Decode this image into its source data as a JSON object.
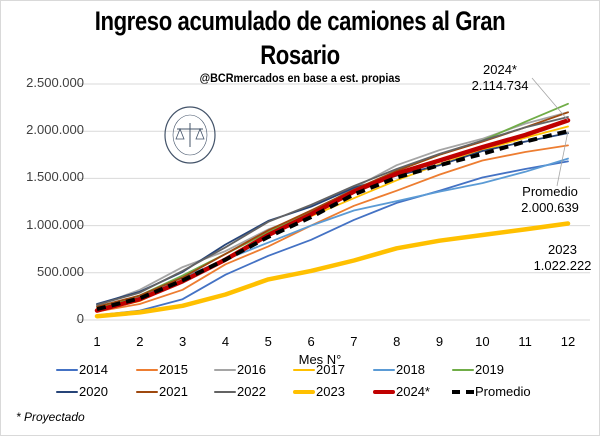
{
  "chart_data": {
    "type": "line",
    "title": "Ingreso acumulado de camiones al Gran Rosario",
    "title_lines": [
      "Ingreso acumulado de camiones al Gran",
      "Rosario"
    ],
    "subtitle": "@BCRmercados  en base a est. propias",
    "xlabel": "Mes N°",
    "ylabel": "",
    "x": [
      1,
      2,
      3,
      4,
      5,
      6,
      7,
      8,
      9,
      10,
      11,
      12
    ],
    "ylim": [
      0,
      2500000
    ],
    "yticks": [
      0,
      500000,
      1000000,
      1500000,
      2000000,
      2500000
    ],
    "ytick_labels": [
      "0",
      "500.000",
      "1.000.000",
      "1.500.000",
      "2.000.000",
      "2.500.000"
    ],
    "grid": true,
    "legend_position": "bottom",
    "series": [
      {
        "name": "2014",
        "color": "#4472c4",
        "width": "thin",
        "dash": false,
        "values": [
          50000,
          100000,
          220000,
          480000,
          680000,
          850000,
          1060000,
          1240000,
          1370000,
          1510000,
          1600000,
          1680000
        ]
      },
      {
        "name": "2015",
        "color": "#ed7d31",
        "width": "thin",
        "dash": false,
        "values": [
          90000,
          170000,
          320000,
          590000,
          780000,
          1000000,
          1210000,
          1370000,
          1540000,
          1690000,
          1780000,
          1850000
        ]
      },
      {
        "name": "2016",
        "color": "#a5a5a5",
        "width": "thin",
        "dash": false,
        "values": [
          150000,
          320000,
          560000,
          730000,
          960000,
          1130000,
          1400000,
          1640000,
          1800000,
          1920000,
          2080000,
          2200000
        ]
      },
      {
        "name": "2017",
        "color": "#ffc000",
        "width": "thin",
        "dash": false,
        "values": [
          100000,
          200000,
          420000,
          640000,
          900000,
          1100000,
          1290000,
          1480000,
          1650000,
          1800000,
          1930000,
          2050000
        ]
      },
      {
        "name": "2018",
        "color": "#5b9bd5",
        "width": "thin",
        "dash": false,
        "values": [
          110000,
          240000,
          450000,
          640000,
          820000,
          1000000,
          1160000,
          1260000,
          1360000,
          1450000,
          1570000,
          1710000
        ]
      },
      {
        "name": "2019",
        "color": "#70ad47",
        "width": "thin",
        "dash": false,
        "values": [
          120000,
          260000,
          470000,
          700000,
          930000,
          1150000,
          1360000,
          1580000,
          1750000,
          1900000,
          2100000,
          2290000
        ]
      },
      {
        "name": "2020",
        "color": "#264478",
        "width": "thin",
        "dash": false,
        "values": [
          170000,
          300000,
          510000,
          800000,
          1050000,
          1200000,
          1400000,
          1530000,
          1640000,
          1790000,
          1890000,
          1980000
        ]
      },
      {
        "name": "2021",
        "color": "#9e480e",
        "width": "thin",
        "dash": false,
        "values": [
          140000,
          260000,
          450000,
          700000,
          950000,
          1160000,
          1380000,
          1580000,
          1750000,
          1890000,
          2040000,
          2200000
        ]
      },
      {
        "name": "2022",
        "color": "#636363",
        "width": "thin",
        "dash": false,
        "values": [
          160000,
          290000,
          520000,
          770000,
          1040000,
          1220000,
          1420000,
          1600000,
          1760000,
          1900000,
          2040000,
          2150000
        ]
      },
      {
        "name": "2023",
        "color": "#ffc000",
        "width": "thick",
        "dash": false,
        "values": [
          40000,
          80000,
          150000,
          270000,
          430000,
          520000,
          630000,
          760000,
          840000,
          900000,
          960000,
          1022222
        ]
      },
      {
        "name": "2024*",
        "color": "#c00000",
        "width": "thick",
        "dash": false,
        "values": [
          100000,
          220000,
          410000,
          640000,
          900000,
          1120000,
          1360000,
          1550000,
          1690000,
          1830000,
          1960000,
          2114734
        ]
      },
      {
        "name": "Promedio",
        "color": "#000000",
        "width": "thick",
        "dash": true,
        "values": [
          115000,
          230000,
          420000,
          640000,
          880000,
          1090000,
          1330000,
          1510000,
          1640000,
          1760000,
          1890000,
          2000639
        ]
      }
    ],
    "annotations": [
      {
        "series": "2024*",
        "label": "2024*",
        "value_text": "2.114.734"
      },
      {
        "series": "Promedio",
        "label": "Promedio",
        "value_text": "2.000.639"
      },
      {
        "series": "2023",
        "label": "2023",
        "value_text": "1.022.222"
      }
    ],
    "footnote": "* Proyectado",
    "watermark": "BOLSA DE COMERCIO DE ROSARIO"
  }
}
